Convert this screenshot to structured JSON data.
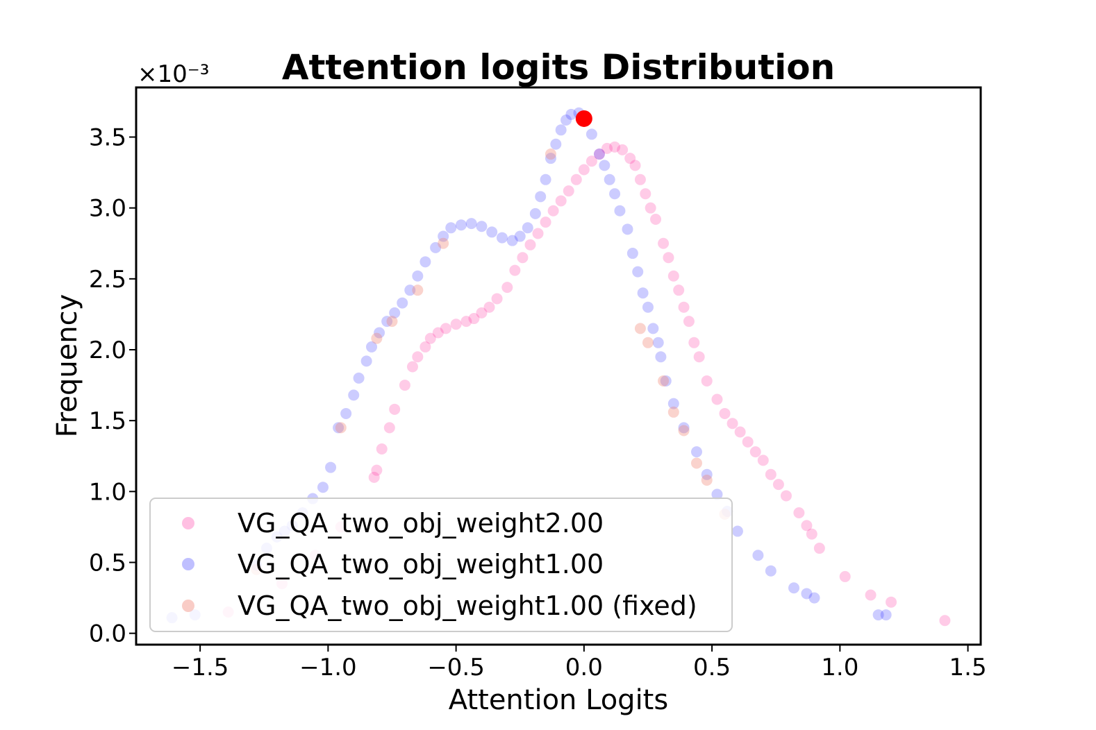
{
  "chart_data": {
    "type": "scatter",
    "title": "Attention logits Distribution",
    "xlabel": "Attention Logits",
    "ylabel": "Frequency",
    "y_offset_text": "×10⁻³",
    "xlim": [
      -1.75,
      1.55
    ],
    "ylim": [
      -0.08,
      3.85
    ],
    "xticks": [
      -1.5,
      -1.0,
      -0.5,
      0.0,
      0.5,
      1.0,
      1.5
    ],
    "xtick_labels": [
      "−1.5",
      "−1.0",
      "−0.5",
      "0.0",
      "0.5",
      "1.0",
      "1.5"
    ],
    "yticks": [
      0.0,
      0.5,
      1.0,
      1.5,
      2.0,
      2.5,
      3.0,
      3.5
    ],
    "ytick_labels": [
      "0.0",
      "0.5",
      "1.0",
      "1.5",
      "2.0",
      "2.5",
      "3.0",
      "3.5"
    ],
    "legend_position": "lower-left",
    "series": [
      {
        "name": "VG_QA_two_obj_weight2.00",
        "color": "#ff1493",
        "opacity": 0.22,
        "points": [
          [
            -1.39,
            0.15
          ],
          [
            -1.18,
            0.35
          ],
          [
            -1.05,
            0.55
          ],
          [
            -0.95,
            0.75
          ],
          [
            -0.82,
            1.1
          ],
          [
            -0.81,
            1.15
          ],
          [
            -0.79,
            1.3
          ],
          [
            -0.76,
            1.45
          ],
          [
            -0.74,
            1.58
          ],
          [
            -0.7,
            1.75
          ],
          [
            -0.67,
            1.88
          ],
          [
            -0.65,
            1.95
          ],
          [
            -0.62,
            2.02
          ],
          [
            -0.6,
            2.08
          ],
          [
            -0.57,
            2.12
          ],
          [
            -0.54,
            2.15
          ],
          [
            -0.5,
            2.18
          ],
          [
            -0.46,
            2.2
          ],
          [
            -0.43,
            2.22
          ],
          [
            -0.4,
            2.26
          ],
          [
            -0.37,
            2.3
          ],
          [
            -0.34,
            2.36
          ],
          [
            -0.3,
            2.44
          ],
          [
            -0.27,
            2.56
          ],
          [
            -0.24,
            2.65
          ],
          [
            -0.21,
            2.74
          ],
          [
            -0.18,
            2.82
          ],
          [
            -0.15,
            2.9
          ],
          [
            -0.12,
            2.98
          ],
          [
            -0.09,
            3.05
          ],
          [
            -0.06,
            3.12
          ],
          [
            -0.03,
            3.2
          ],
          [
            0.0,
            3.27
          ],
          [
            0.03,
            3.33
          ],
          [
            0.06,
            3.38
          ],
          [
            0.09,
            3.42
          ],
          [
            0.12,
            3.43
          ],
          [
            0.15,
            3.41
          ],
          [
            0.18,
            3.35
          ],
          [
            0.2,
            3.3
          ],
          [
            0.22,
            3.2
          ],
          [
            0.24,
            3.1
          ],
          [
            0.26,
            3.0
          ],
          [
            0.28,
            2.92
          ],
          [
            0.31,
            2.75
          ],
          [
            0.33,
            2.65
          ],
          [
            0.35,
            2.52
          ],
          [
            0.37,
            2.42
          ],
          [
            0.39,
            2.3
          ],
          [
            0.41,
            2.2
          ],
          [
            0.43,
            2.05
          ],
          [
            0.45,
            1.95
          ],
          [
            0.48,
            1.78
          ],
          [
            0.52,
            1.65
          ],
          [
            0.55,
            1.55
          ],
          [
            0.58,
            1.48
          ],
          [
            0.61,
            1.42
          ],
          [
            0.64,
            1.35
          ],
          [
            0.67,
            1.28
          ],
          [
            0.7,
            1.22
          ],
          [
            0.73,
            1.12
          ],
          [
            0.76,
            1.05
          ],
          [
            0.79,
            0.97
          ],
          [
            0.84,
            0.85
          ],
          [
            0.87,
            0.76
          ],
          [
            0.89,
            0.7
          ],
          [
            0.92,
            0.6
          ],
          [
            1.02,
            0.4
          ],
          [
            1.12,
            0.27
          ],
          [
            1.2,
            0.22
          ],
          [
            1.41,
            0.09
          ]
        ]
      },
      {
        "name": "VG_QA_two_obj_weight1.00",
        "color": "#0000ff",
        "opacity": 0.2,
        "points": [
          [
            -1.61,
            0.11
          ],
          [
            -1.52,
            0.13
          ],
          [
            -1.28,
            0.48
          ],
          [
            -1.24,
            0.6
          ],
          [
            -1.2,
            0.68
          ],
          [
            -1.17,
            0.72
          ],
          [
            -1.14,
            0.76
          ],
          [
            -1.1,
            0.85
          ],
          [
            -1.06,
            0.95
          ],
          [
            -1.02,
            1.03
          ],
          [
            -0.99,
            1.17
          ],
          [
            -0.96,
            1.45
          ],
          [
            -0.93,
            1.55
          ],
          [
            -0.9,
            1.68
          ],
          [
            -0.88,
            1.8
          ],
          [
            -0.85,
            1.92
          ],
          [
            -0.83,
            2.02
          ],
          [
            -0.8,
            2.12
          ],
          [
            -0.77,
            2.2
          ],
          [
            -0.74,
            2.26
          ],
          [
            -0.71,
            2.33
          ],
          [
            -0.68,
            2.42
          ],
          [
            -0.65,
            2.52
          ],
          [
            -0.62,
            2.62
          ],
          [
            -0.58,
            2.72
          ],
          [
            -0.55,
            2.8
          ],
          [
            -0.52,
            2.86
          ],
          [
            -0.48,
            2.88
          ],
          [
            -0.44,
            2.89
          ],
          [
            -0.4,
            2.87
          ],
          [
            -0.36,
            2.83
          ],
          [
            -0.32,
            2.79
          ],
          [
            -0.28,
            2.77
          ],
          [
            -0.25,
            2.8
          ],
          [
            -0.22,
            2.86
          ],
          [
            -0.19,
            2.96
          ],
          [
            -0.17,
            3.08
          ],
          [
            -0.15,
            3.2
          ],
          [
            -0.13,
            3.35
          ],
          [
            -0.11,
            3.45
          ],
          [
            -0.09,
            3.55
          ],
          [
            -0.07,
            3.62
          ],
          [
            -0.05,
            3.66
          ],
          [
            -0.02,
            3.67
          ],
          [
            0.03,
            3.52
          ],
          [
            0.06,
            3.38
          ],
          [
            0.08,
            3.3
          ],
          [
            0.1,
            3.2
          ],
          [
            0.12,
            3.1
          ],
          [
            0.14,
            2.98
          ],
          [
            0.17,
            2.85
          ],
          [
            0.19,
            2.68
          ],
          [
            0.21,
            2.55
          ],
          [
            0.23,
            2.4
          ],
          [
            0.25,
            2.3
          ],
          [
            0.27,
            2.15
          ],
          [
            0.29,
            2.05
          ],
          [
            0.3,
            1.95
          ],
          [
            0.32,
            1.78
          ],
          [
            0.35,
            1.62
          ],
          [
            0.39,
            1.45
          ],
          [
            0.44,
            1.28
          ],
          [
            0.48,
            1.12
          ],
          [
            0.52,
            0.98
          ],
          [
            0.56,
            0.86
          ],
          [
            0.6,
            0.72
          ],
          [
            0.68,
            0.55
          ],
          [
            0.73,
            0.44
          ],
          [
            0.82,
            0.32
          ],
          [
            0.87,
            0.28
          ],
          [
            0.9,
            0.25
          ],
          [
            1.15,
            0.13
          ],
          [
            1.18,
            0.13
          ]
        ]
      },
      {
        "name": "VG_QA_two_obj_weight1.00 (fixed)",
        "color": "#f08070",
        "opacity": 0.35,
        "points": [
          [
            -1.28,
            0.45
          ],
          [
            -0.95,
            1.45
          ],
          [
            -0.81,
            2.08
          ],
          [
            -0.75,
            2.2
          ],
          [
            -0.65,
            2.42
          ],
          [
            -0.55,
            2.75
          ],
          [
            -0.13,
            3.38
          ],
          [
            0.22,
            2.15
          ],
          [
            0.25,
            2.05
          ],
          [
            0.31,
            1.78
          ],
          [
            0.35,
            1.56
          ],
          [
            0.39,
            1.43
          ],
          [
            0.44,
            1.2
          ],
          [
            0.48,
            1.08
          ],
          [
            0.55,
            0.84
          ]
        ]
      }
    ],
    "highlight_point": {
      "x": 0.0,
      "y": 3.63,
      "color": "#ff0000"
    }
  }
}
